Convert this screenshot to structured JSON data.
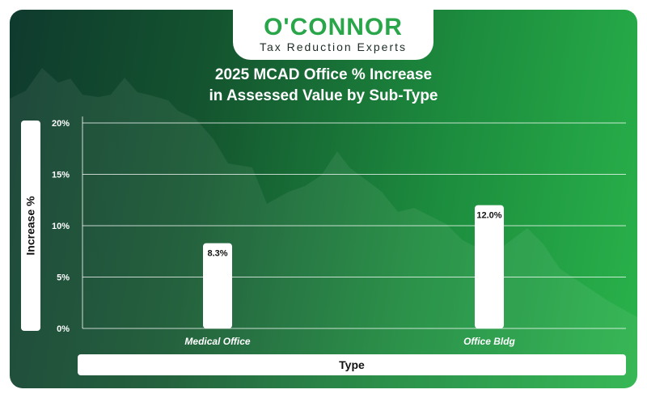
{
  "brand": {
    "logo_text": "O'CONNOR",
    "tagline": "Tax Reduction Experts"
  },
  "chart_data": {
    "type": "bar",
    "title_line1": "2025 MCAD Office % Increase",
    "title_line2": "in Assessed Value by Sub-Type",
    "xlabel": "Type",
    "ylabel": "Increase %",
    "categories": [
      "Medical Office",
      "Office Bldg"
    ],
    "values": [
      8.3,
      12.0
    ],
    "value_labels": [
      "8.3%",
      "12.0%"
    ],
    "ylim": [
      0,
      20
    ],
    "yticks": [
      0,
      5,
      10,
      15,
      20
    ],
    "ytick_labels": [
      "0%",
      "5%",
      "10%",
      "15%",
      "20%"
    ],
    "grid": true,
    "colors": {
      "bar": "#ffffff",
      "grid": "#ffffff",
      "text": "#ffffff"
    }
  }
}
